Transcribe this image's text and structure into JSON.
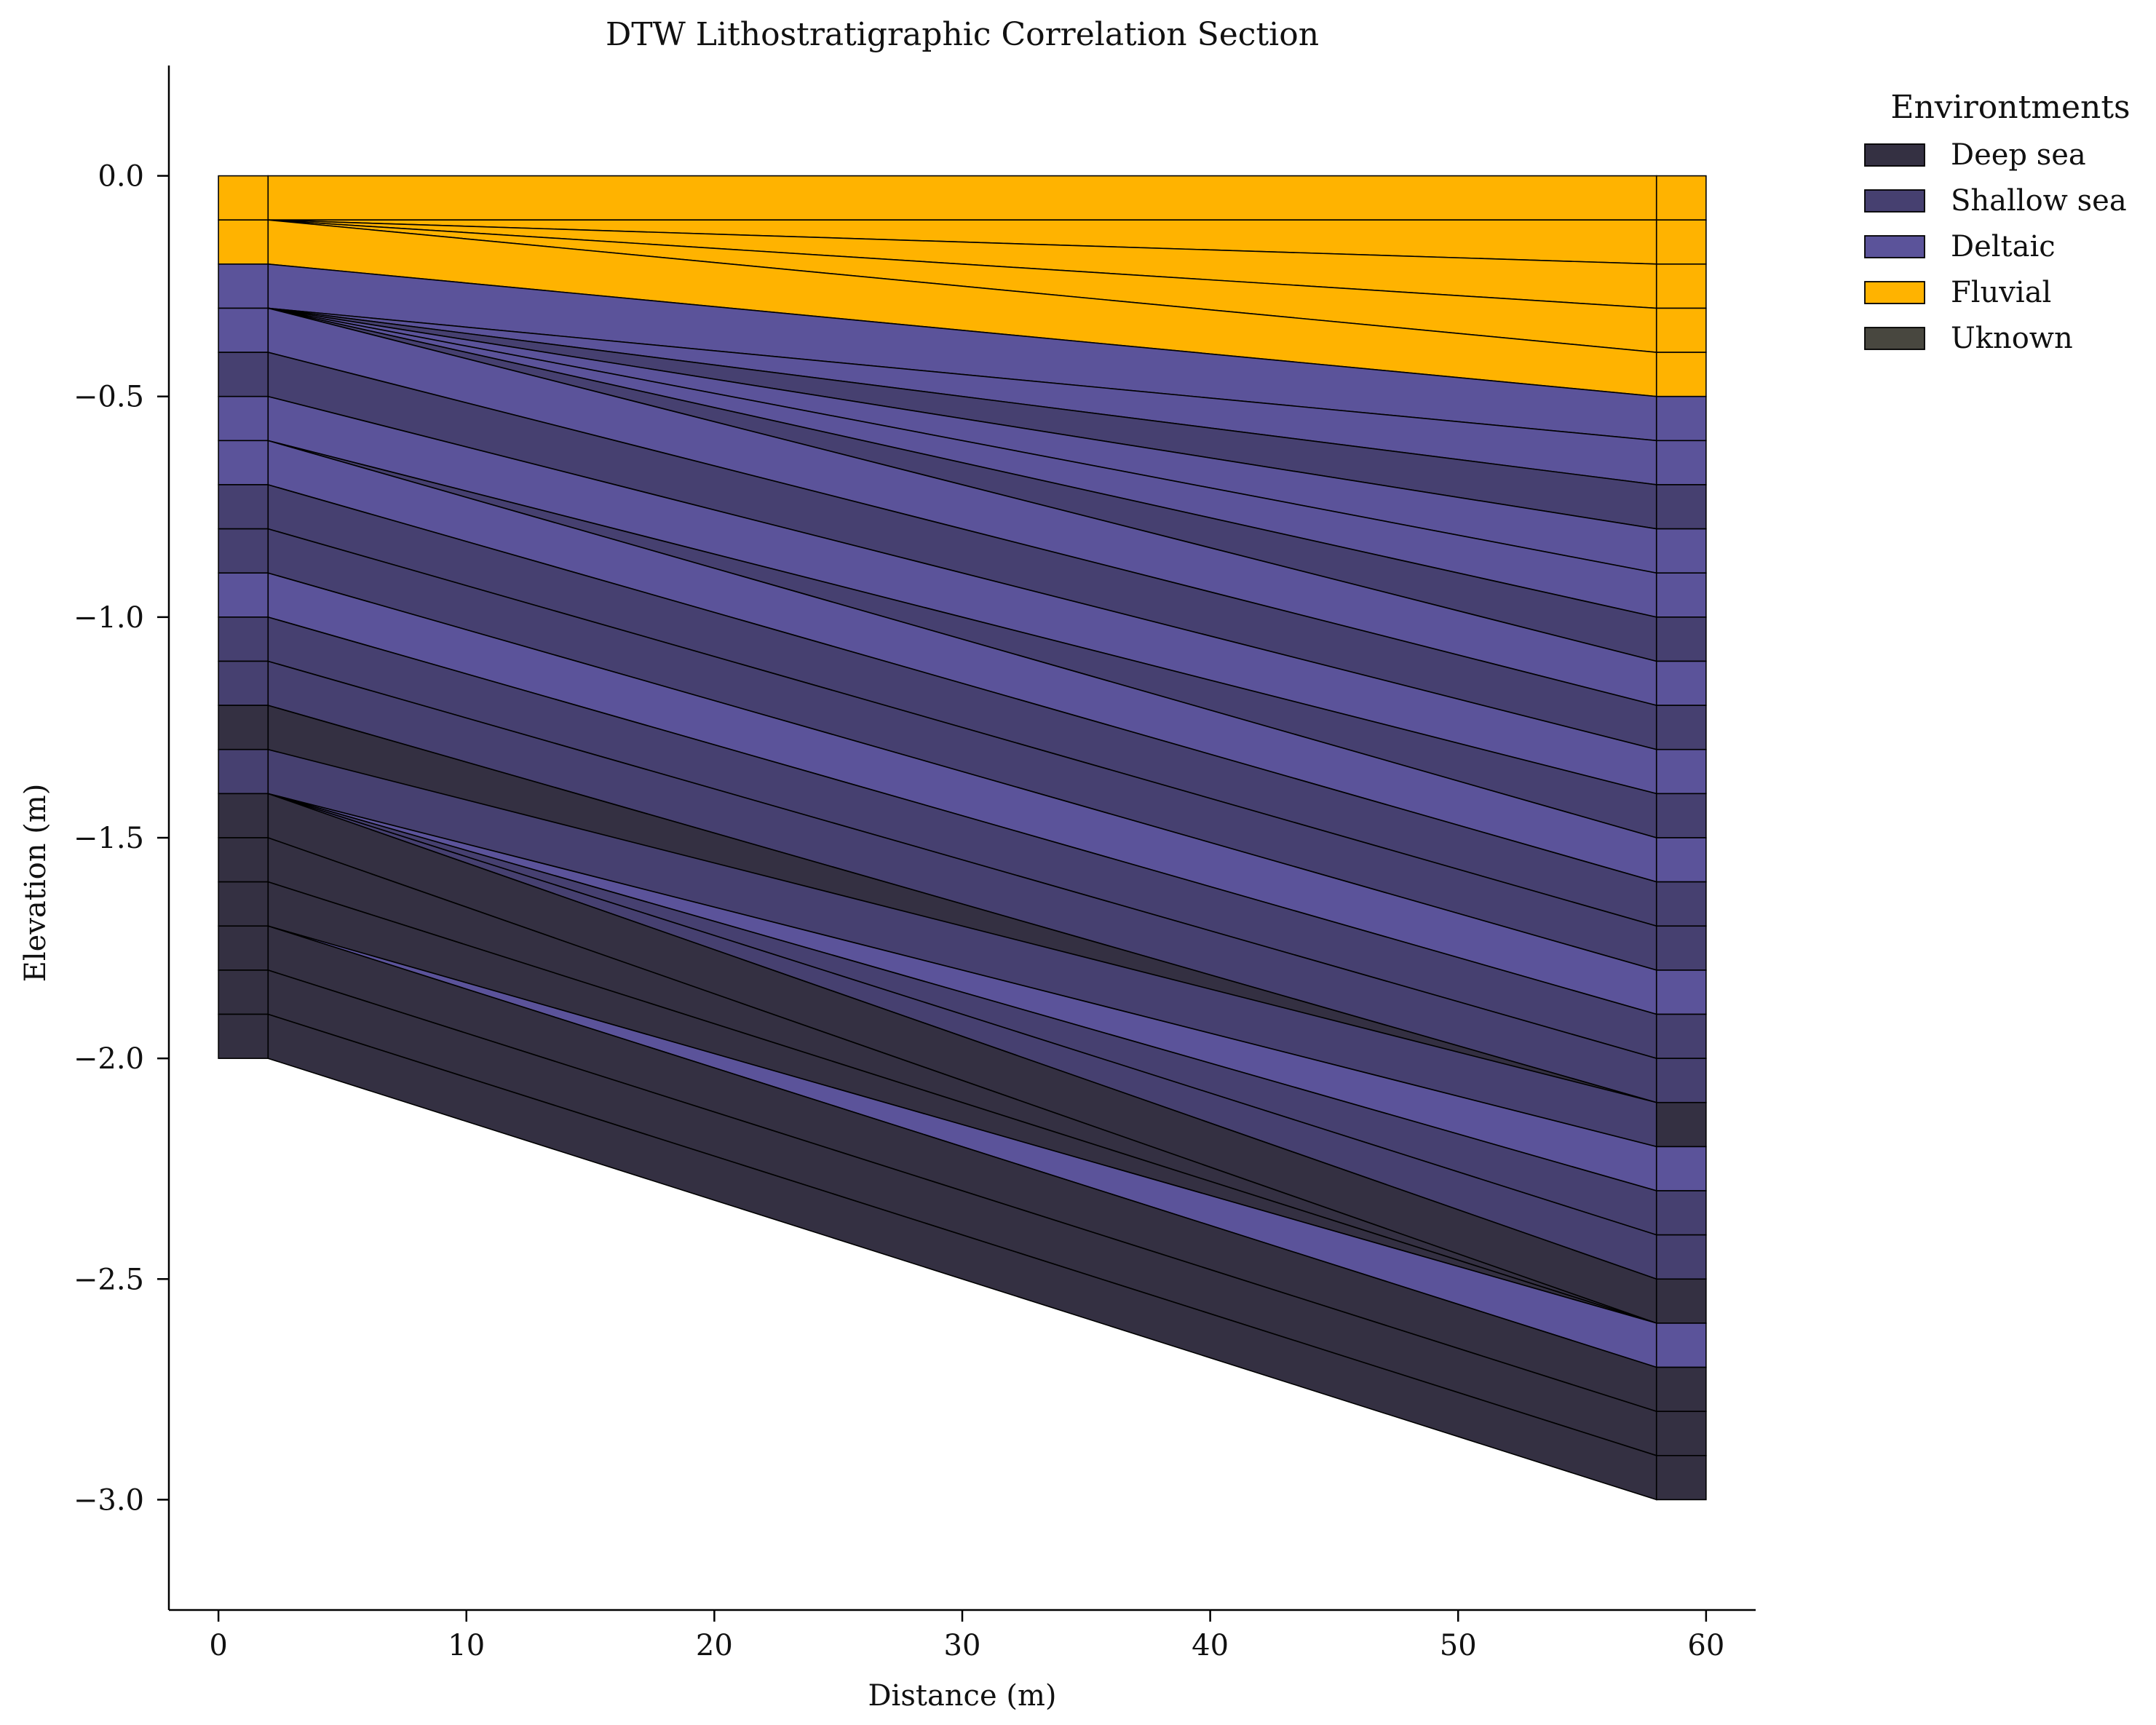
{
  "chart_data": {
    "type": "area",
    "title": "DTW Lithostratigraphic Correlation Section",
    "xlabel": "Distance (m)",
    "ylabel": "Elevation (m)",
    "xlim": [
      -2,
      62
    ],
    "ylim": [
      -3.25,
      0.25
    ],
    "xticks": [
      0,
      10,
      20,
      30,
      40,
      50,
      60
    ],
    "yticks": [
      0.0,
      -0.5,
      -1.0,
      -1.5,
      -2.0,
      -2.5,
      -3.0
    ],
    "xtick_labels": [
      "0",
      "10",
      "20",
      "30",
      "40",
      "50",
      "60"
    ],
    "ytick_labels": [
      "0.0",
      "−0.5",
      "−1.0",
      "−1.5",
      "−2.0",
      "−2.5",
      "−3.0"
    ],
    "grid": false,
    "legend_position": "outside-top-right",
    "legend": {
      "title": "Environtments",
      "entries": [
        {
          "label": "Deep sea",
          "color": "#343042"
        },
        {
          "label": "Shallow sea",
          "color": "#464070"
        },
        {
          "label": "Deltaic",
          "color": "#5b539a"
        },
        {
          "label": "Fluvial",
          "color": "#ffb300"
        },
        {
          "label": "Uknown",
          "color": "#48473f"
        }
      ]
    },
    "colors": {
      "deep_sea": "#343042",
      "shallow_sea": "#464070",
      "deltaic": "#5b539a",
      "fluvial": "#ffb300",
      "unknown": "#48473f"
    },
    "left_well": {
      "x_range": [
        0,
        2
      ],
      "boundaries": [
        0,
        -0.1,
        -0.2,
        -0.3,
        -0.4,
        -0.5,
        -0.6,
        -0.7,
        -0.8,
        -0.9,
        -1.0,
        -1.1,
        -1.2,
        -1.3,
        -1.4,
        -1.5,
        -1.6,
        -1.7,
        -1.8,
        -1.9,
        -2.0
      ],
      "facies": [
        "fluvial",
        "fluvial",
        "deltaic",
        "deltaic",
        "shallow_sea",
        "deltaic",
        "deltaic",
        "shallow_sea",
        "shallow_sea",
        "deltaic",
        "shallow_sea",
        "shallow_sea",
        "deep_sea",
        "shallow_sea",
        "deep_sea",
        "deep_sea",
        "deep_sea",
        "deep_sea",
        "deep_sea",
        "deep_sea"
      ]
    },
    "right_well": {
      "x_range": [
        58,
        60
      ],
      "boundaries": [
        0,
        -0.1,
        -0.2,
        -0.3,
        -0.4,
        -0.5,
        -0.6,
        -0.7,
        -0.8,
        -0.9,
        -1.0,
        -1.1,
        -1.2,
        -1.3,
        -1.4,
        -1.5,
        -1.6,
        -1.7,
        -1.8,
        -1.9,
        -2.0,
        -2.1,
        -2.2,
        -2.3,
        -2.4,
        -2.5,
        -2.6,
        -2.7,
        -2.8,
        -2.9,
        -3.0
      ],
      "facies": [
        "fluvial",
        "fluvial",
        "fluvial",
        "fluvial",
        "fluvial",
        "deltaic",
        "deltaic",
        "shallow_sea",
        "deltaic",
        "deltaic",
        "shallow_sea",
        "deltaic",
        "shallow_sea",
        "deltaic",
        "shallow_sea",
        "deltaic",
        "shallow_sea",
        "shallow_sea",
        "deltaic",
        "shallow_sea",
        "shallow_sea",
        "deep_sea",
        "deltaic",
        "shallow_sea",
        "shallow_sea",
        "deep_sea",
        "deltaic",
        "deep_sea",
        "deep_sea",
        "deep_sea"
      ]
    },
    "correlation_bands": [
      {
        "facies": "fluvial",
        "left": [
          0.0,
          -0.1
        ],
        "right": [
          0.0,
          -0.1
        ]
      },
      {
        "facies": "fluvial",
        "left": [
          -0.1,
          -0.1
        ],
        "right": [
          -0.1,
          -0.2
        ]
      },
      {
        "facies": "fluvial",
        "left": [
          -0.1,
          -0.1
        ],
        "right": [
          -0.2,
          -0.3
        ]
      },
      {
        "facies": "fluvial",
        "left": [
          -0.1,
          -0.1
        ],
        "right": [
          -0.3,
          -0.4
        ]
      },
      {
        "facies": "fluvial",
        "left": [
          -0.1,
          -0.2
        ],
        "right": [
          -0.4,
          -0.5
        ]
      },
      {
        "facies": "deltaic",
        "left": [
          -0.2,
          -0.3
        ],
        "right": [
          -0.5,
          -0.6
        ]
      },
      {
        "facies": "deltaic",
        "left": [
          -0.3,
          -0.3
        ],
        "right": [
          -0.6,
          -0.7
        ]
      },
      {
        "facies": "shallow_sea",
        "left": [
          -0.3,
          -0.3
        ],
        "right": [
          -0.7,
          -0.8
        ]
      },
      {
        "facies": "deltaic",
        "left": [
          -0.3,
          -0.3
        ],
        "right": [
          -0.8,
          -0.9
        ]
      },
      {
        "facies": "deltaic",
        "left": [
          -0.3,
          -0.3
        ],
        "right": [
          -0.9,
          -1.0
        ]
      },
      {
        "facies": "shallow_sea",
        "left": [
          -0.3,
          -0.3
        ],
        "right": [
          -1.0,
          -1.1
        ]
      },
      {
        "facies": "deltaic",
        "left": [
          -0.3,
          -0.4
        ],
        "right": [
          -1.1,
          -1.2
        ]
      },
      {
        "facies": "shallow_sea",
        "left": [
          -0.4,
          -0.5
        ],
        "right": [
          -1.2,
          -1.3
        ]
      },
      {
        "facies": "deltaic",
        "left": [
          -0.5,
          -0.6
        ],
        "right": [
          -1.3,
          -1.4
        ]
      },
      {
        "facies": "shallow_sea",
        "left": [
          -0.6,
          -0.6
        ],
        "right": [
          -1.4,
          -1.5
        ]
      },
      {
        "facies": "deltaic",
        "left": [
          -0.6,
          -0.7
        ],
        "right": [
          -1.5,
          -1.6
        ]
      },
      {
        "facies": "shallow_sea",
        "left": [
          -0.7,
          -0.8
        ],
        "right": [
          -1.6,
          -1.7
        ]
      },
      {
        "facies": "shallow_sea",
        "left": [
          -0.8,
          -0.9
        ],
        "right": [
          -1.7,
          -1.8
        ]
      },
      {
        "facies": "deltaic",
        "left": [
          -0.9,
          -1.0
        ],
        "right": [
          -1.8,
          -1.9
        ]
      },
      {
        "facies": "shallow_sea",
        "left": [
          -1.0,
          -1.1
        ],
        "right": [
          -1.9,
          -2.0
        ]
      },
      {
        "facies": "shallow_sea",
        "left": [
          -1.1,
          -1.2
        ],
        "right": [
          -2.0,
          -2.1
        ]
      },
      {
        "facies": "deep_sea",
        "left": [
          -1.2,
          -1.3
        ],
        "right": [
          -2.1,
          -2.2
        ]
      },
      {
        "facies": "shallow_sea",
        "left": [
          -1.3,
          -1.4
        ],
        "right": [
          -2.1,
          -2.2
        ]
      },
      {
        "facies": "deltaic",
        "left": [
          -1.4,
          -1.4
        ],
        "right": [
          -2.2,
          -2.3
        ]
      },
      {
        "facies": "shallow_sea",
        "left": [
          -1.4,
          -1.4
        ],
        "right": [
          -2.3,
          -2.4
        ]
      },
      {
        "facies": "shallow_sea",
        "left": [
          -1.4,
          -1.4
        ],
        "right": [
          -2.4,
          -2.5
        ]
      },
      {
        "facies": "deep_sea",
        "left": [
          -1.4,
          -1.5
        ],
        "right": [
          -2.5,
          -2.6
        ]
      },
      {
        "facies": "deep_sea",
        "left": [
          -1.5,
          -1.6
        ],
        "right": [
          -2.6,
          -2.6
        ]
      },
      {
        "facies": "deep_sea",
        "left": [
          -1.6,
          -1.7
        ],
        "right": [
          -2.6,
          -2.6
        ]
      },
      {
        "facies": "deltaic",
        "left": [
          -1.7,
          -1.7
        ],
        "right": [
          -2.6,
          -2.7
        ]
      },
      {
        "facies": "deep_sea",
        "left": [
          -1.7,
          -1.8
        ],
        "right": [
          -2.7,
          -2.8
        ]
      },
      {
        "facies": "deep_sea",
        "left": [
          -1.8,
          -1.9
        ],
        "right": [
          -2.8,
          -2.9
        ]
      },
      {
        "facies": "deep_sea",
        "left": [
          -1.9,
          -2.0
        ],
        "right": [
          -2.9,
          -3.0
        ]
      }
    ]
  }
}
